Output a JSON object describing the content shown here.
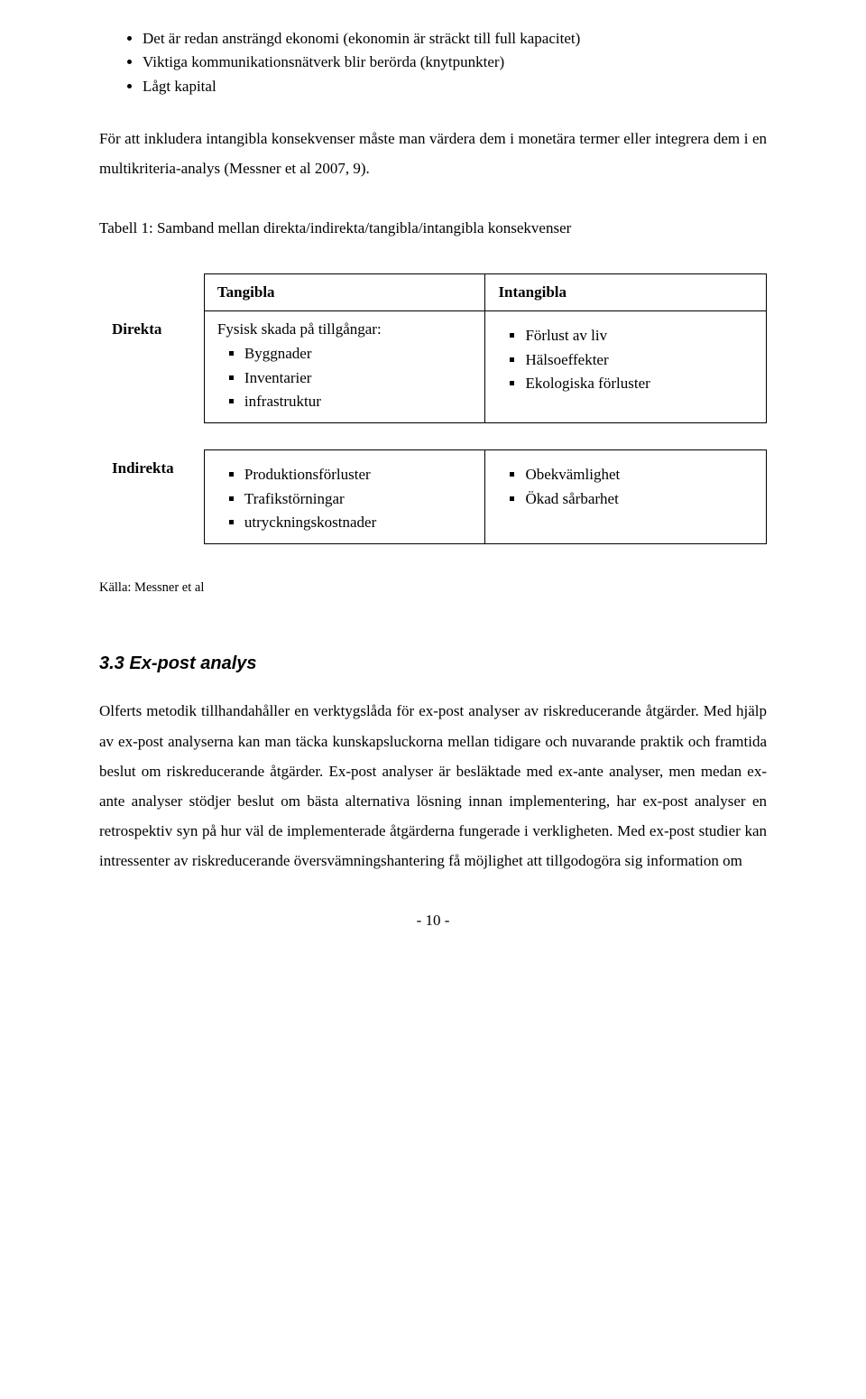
{
  "bullets": {
    "b1": "Det är redan ansträngd ekonomi (ekonomin är sträckt till full kapacitet)",
    "b2": "Viktiga kommunikationsnätverk blir berörda (knytpunkter)",
    "b3": "Lågt kapital"
  },
  "paragraph1": "För att inkludera intangibla konsekvenser måste man värdera dem i monetära termer eller integrera dem i en multikriteria-analys (Messner et al 2007, 9).",
  "tableTitle": "Tabell 1: Samband mellan direkta/indirekta/tangibla/intangibla konsekvenser",
  "table": {
    "colHead1": "Tangibla",
    "colHead2": "Intangibla",
    "rowHead1": "Direkta",
    "rowHead2": "Indirekta",
    "direkta_tangibla": {
      "lead": "Fysisk skada på tillgångar:",
      "i1": "Byggnader",
      "i2": "Inventarier",
      "i3": "infrastruktur"
    },
    "direkta_intangibla": {
      "i1": "Förlust av liv",
      "i2": "Hälsoeffekter",
      "i3": "Ekologiska förluster"
    },
    "indirekta_tangibla": {
      "i1": "Produktionsförluster",
      "i2": "Trafikstörningar",
      "i3": "utryckningskostnader"
    },
    "indirekta_intangibla": {
      "i1": "Obekvämlighet",
      "i2": "Ökad sårbarhet"
    }
  },
  "source": "Källa: Messner et al",
  "sectionHeading": "3.3 Ex-post analys",
  "paragraph2": "Olferts metodik tillhandahåller en verktygslåda för ex-post analyser av riskreducerande åtgärder. Med hjälp av ex-post analyserna kan man täcka kunskapsluckorna mellan tidigare och nuvarande praktik och framtida beslut om riskreducerande åtgärder. Ex-post analyser är besläktade med ex-ante analyser, men medan ex-ante analyser stödjer beslut om bästa alternativa lösning innan implementering, har ex-post analyser en retrospektiv syn på hur väl de implementerade åtgärderna fungerade i verkligheten. Med ex-post studier kan intressenter av riskreducerande översvämningshantering få möjlighet att tillgodogöra sig information om",
  "footer": "- 10 -"
}
